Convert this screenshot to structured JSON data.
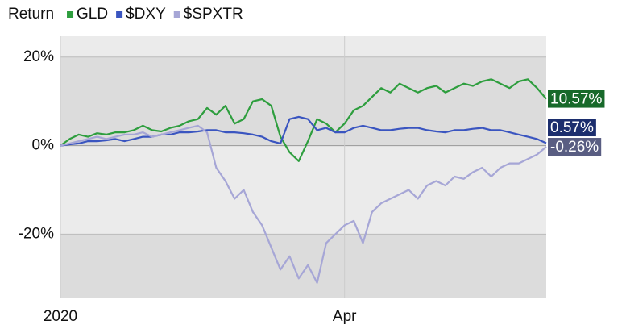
{
  "chart_data": {
    "type": "line",
    "legend_title": "Return",
    "xlim": [
      0,
      53
    ],
    "xticks": [
      {
        "value": 0,
        "label": "2020"
      },
      {
        "value": 31,
        "label": "Apr"
      }
    ],
    "ylim": [
      -34.5,
      24.7
    ],
    "yticks": [
      {
        "value": 20,
        "label": "20%"
      },
      {
        "value": 0,
        "label": "0%"
      },
      {
        "value": -20,
        "label": "-20%"
      }
    ],
    "grid": true,
    "series": [
      {
        "name": "GLD",
        "color": "#2e9e3e",
        "label_color": "#17692a",
        "end_label": "10.57%",
        "values": [
          0,
          1.5,
          2.5,
          2,
          2.8,
          2.5,
          3,
          3,
          3.5,
          4.5,
          3.5,
          3.2,
          4,
          4.5,
          5.5,
          6,
          8.5,
          7,
          9,
          5,
          6,
          10,
          10.5,
          9,
          2,
          -1.5,
          -3.5,
          1,
          6,
          5,
          3,
          5,
          8,
          9,
          11,
          13,
          12,
          14,
          13,
          12,
          13,
          13.5,
          12,
          13,
          14,
          13.5,
          14.5,
          15,
          14,
          13,
          14.5,
          15,
          13,
          10.57
        ]
      },
      {
        "name": "$DXY",
        "color": "#3a55c0",
        "label_color": "#1c2e6e",
        "end_label": "0.57%",
        "values": [
          0,
          0.3,
          0.5,
          1,
          1,
          1.2,
          1.5,
          1,
          1.5,
          2,
          2,
          2.5,
          2.5,
          3,
          3,
          3.2,
          3.5,
          3.5,
          3,
          3,
          2.8,
          2.5,
          2,
          1,
          0.5,
          6,
          6.5,
          6,
          3.5,
          4,
          3,
          3,
          4,
          4.5,
          4,
          3.5,
          3.5,
          3.8,
          4,
          4,
          3.5,
          3.2,
          3,
          3.5,
          3.5,
          3.8,
          4,
          3.5,
          3.5,
          3,
          2.5,
          2,
          1.5,
          0.57
        ]
      },
      {
        "name": "$SPXTR",
        "color": "#a6a6d6",
        "label_color": "#595d82",
        "end_label": "-0.26%",
        "values": [
          0,
          0.5,
          1,
          1.5,
          2,
          1.5,
          2,
          2.5,
          2.5,
          3,
          2,
          2.5,
          3,
          3.5,
          4,
          4.5,
          3,
          -5,
          -8,
          -12,
          -10,
          -15,
          -18,
          -23,
          -28,
          -25,
          -30,
          -27,
          -31,
          -22,
          -20,
          -18,
          -17,
          -22,
          -15,
          -13,
          -12,
          -11,
          -10,
          -12,
          -9,
          -8,
          -9,
          -7,
          -7.5,
          -6,
          -5,
          -7,
          -5,
          -4,
          -4,
          -3,
          -2,
          -0.26
        ]
      }
    ]
  }
}
